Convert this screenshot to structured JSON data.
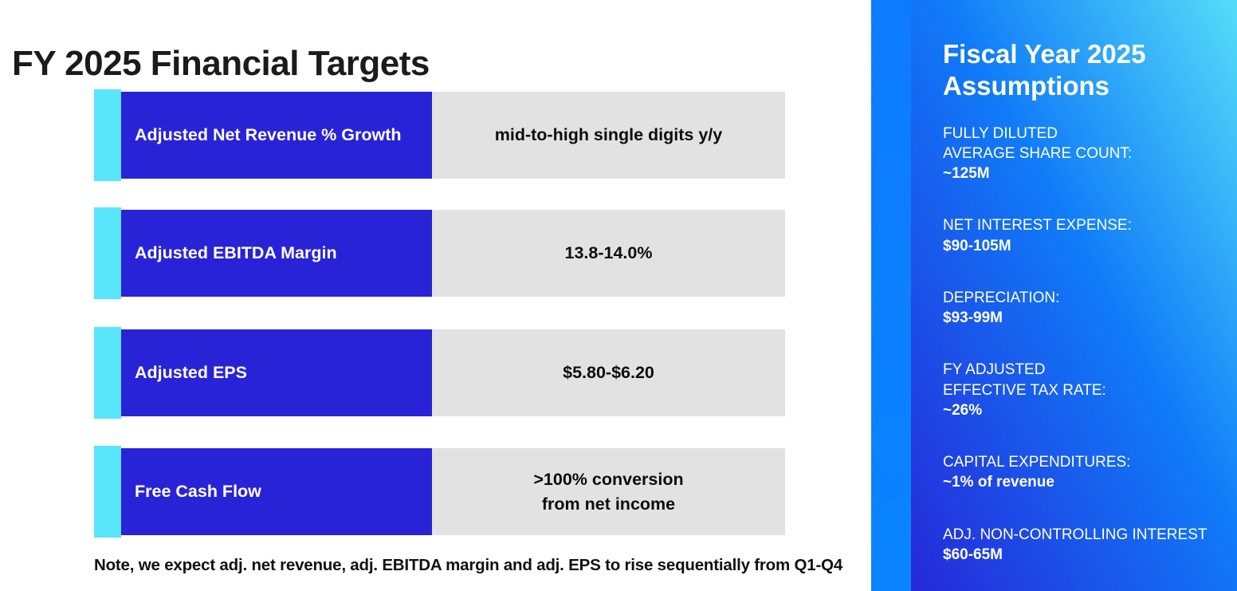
{
  "page": {
    "title": "FY 2025 Financial Targets",
    "note": "Note, we expect adj. net revenue, adj. EBITDA margin and adj. EPS to rise sequentially from Q1-Q4"
  },
  "targets_table": {
    "rows": [
      {
        "label": "Adjusted Net Revenue % Growth",
        "value": "mid-to-high single digits y/y"
      },
      {
        "label": "Adjusted EBITDA Margin",
        "value": "13.8-14.0%"
      },
      {
        "label": "Adjusted EPS",
        "value": "$5.80-$6.20"
      },
      {
        "label": "Free Cash Flow",
        "value": ">100% conversion\nfrom net income"
      }
    ]
  },
  "assumptions_panel": {
    "title": "Fiscal Year 2025 Assumptions",
    "items": [
      {
        "label": "FULLY DILUTED\nAVERAGE SHARE COUNT:",
        "value": "~125M"
      },
      {
        "label": "NET INTEREST EXPENSE:",
        "value": "$90-105M"
      },
      {
        "label": "DEPRECIATION:",
        "value": "$93-99M"
      },
      {
        "label": "FY ADJUSTED\nEFFECTIVE TAX RATE:",
        "value": "~26%"
      },
      {
        "label": "CAPITAL EXPENDITURES:",
        "value": "~1% of revenue"
      },
      {
        "label": "ADJ. NON-CONTROLLING INTEREST",
        "value": "$60-65M"
      }
    ]
  },
  "colors": {
    "accent_cyan": "#59e5fb",
    "row_label_blue": "#2823d6",
    "row_value_gray": "#e2e2e2",
    "strip_blue": "#0c7efb",
    "panel_gradient_dark": "#2629d9",
    "panel_gradient_mid": "#107bf8",
    "panel_gradient_light": "#55dcf8"
  }
}
